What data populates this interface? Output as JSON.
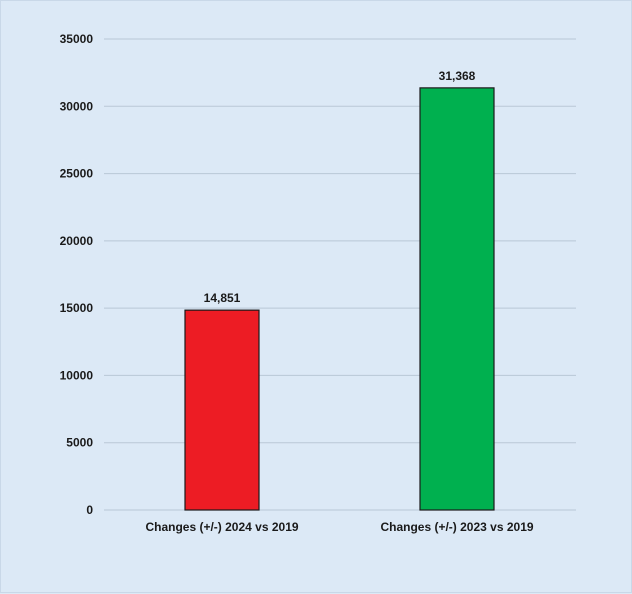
{
  "chart_data": {
    "type": "bar",
    "title": "",
    "xlabel": "",
    "ylabel": "",
    "categories": [
      "Changes (+/-) 2024 vs 2019",
      "Changes (+/-) 2023 vs 2019"
    ],
    "values": [
      14851,
      31368
    ],
    "data_labels": [
      "14,851",
      "31,368"
    ],
    "colors": [
      "#ed1c24",
      "#00b04f"
    ],
    "ylim": [
      0,
      35000
    ],
    "yticks": [
      0,
      5000,
      10000,
      15000,
      20000,
      25000,
      30000,
      35000
    ],
    "ytick_labels": [
      "0",
      "5000",
      "10000",
      "15000",
      "20000",
      "25000",
      "30000",
      "35000"
    ],
    "grid": true,
    "legend": "none"
  }
}
